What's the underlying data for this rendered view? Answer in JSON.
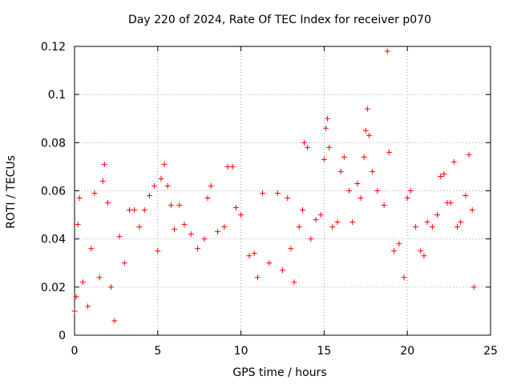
{
  "chart_data": {
    "type": "scatter",
    "title": "Day 220 of 2024, Rate Of TEC Index for receiver p070",
    "xlabel": "GPS time / hours",
    "ylabel": "ROTI / TECUs",
    "xlim": [
      0,
      25
    ],
    "ylim": [
      0,
      0.12
    ],
    "x_ticks": [
      0,
      5,
      10,
      15,
      20,
      25
    ],
    "y_ticks": [
      0,
      0.02,
      0.04,
      0.06,
      0.08,
      0.1,
      0.12
    ],
    "x_tick_labels": [
      "0",
      "5",
      "10",
      "15",
      "20",
      "25"
    ],
    "y_tick_labels": [
      "0",
      "0.02",
      "0.04",
      "0.06",
      "0.08",
      "0.1",
      "0.12"
    ],
    "grid": true,
    "marker": "plus",
    "color": "#ff0000",
    "points": [
      [
        0.0,
        0.01
      ],
      [
        0.1,
        0.016
      ],
      [
        0.2,
        0.046
      ],
      [
        0.3,
        0.057
      ],
      [
        0.5,
        0.022
      ],
      [
        0.8,
        0.012
      ],
      [
        1.0,
        0.036
      ],
      [
        1.2,
        0.059
      ],
      [
        1.5,
        0.024
      ],
      [
        1.7,
        0.064
      ],
      [
        1.8,
        0.071
      ],
      [
        2.0,
        0.055
      ],
      [
        2.2,
        0.02
      ],
      [
        2.4,
        0.006
      ],
      [
        2.7,
        0.041
      ],
      [
        3.0,
        0.03
      ],
      [
        3.3,
        0.052
      ],
      [
        3.6,
        0.052
      ],
      [
        3.9,
        0.045
      ],
      [
        4.2,
        0.052
      ],
      [
        4.5,
        0.058
      ],
      [
        4.8,
        0.062
      ],
      [
        5.0,
        0.035
      ],
      [
        5.2,
        0.065
      ],
      [
        5.4,
        0.071
      ],
      [
        5.6,
        0.062
      ],
      [
        5.8,
        0.054
      ],
      [
        6.0,
        0.044
      ],
      [
        6.3,
        0.054
      ],
      [
        6.6,
        0.046
      ],
      [
        7.0,
        0.042
      ],
      [
        7.4,
        0.036
      ],
      [
        7.8,
        0.04
      ],
      [
        8.0,
        0.057
      ],
      [
        8.2,
        0.062
      ],
      [
        8.6,
        0.043
      ],
      [
        9.0,
        0.045
      ],
      [
        9.2,
        0.07
      ],
      [
        9.5,
        0.07
      ],
      [
        9.7,
        0.053
      ],
      [
        10.0,
        0.05
      ],
      [
        10.5,
        0.033
      ],
      [
        10.8,
        0.034
      ],
      [
        11.0,
        0.024
      ],
      [
        11.3,
        0.059
      ],
      [
        11.7,
        0.03
      ],
      [
        12.2,
        0.059
      ],
      [
        12.5,
        0.027
      ],
      [
        12.8,
        0.057
      ],
      [
        13.0,
        0.036
      ],
      [
        13.2,
        0.022
      ],
      [
        13.5,
        0.045
      ],
      [
        13.7,
        0.052
      ],
      [
        13.8,
        0.08
      ],
      [
        14.0,
        0.078
      ],
      [
        14.2,
        0.04
      ],
      [
        14.5,
        0.048
      ],
      [
        14.8,
        0.05
      ],
      [
        15.0,
        0.073
      ],
      [
        15.1,
        0.086
      ],
      [
        15.2,
        0.09
      ],
      [
        15.3,
        0.078
      ],
      [
        15.5,
        0.045
      ],
      [
        15.8,
        0.047
      ],
      [
        16.0,
        0.068
      ],
      [
        16.2,
        0.074
      ],
      [
        16.5,
        0.06
      ],
      [
        16.7,
        0.047
      ],
      [
        17.0,
        0.063
      ],
      [
        17.2,
        0.057
      ],
      [
        17.4,
        0.074
      ],
      [
        17.5,
        0.085
      ],
      [
        17.6,
        0.094
      ],
      [
        17.7,
        0.083
      ],
      [
        17.9,
        0.068
      ],
      [
        18.2,
        0.06
      ],
      [
        18.6,
        0.054
      ],
      [
        18.8,
        0.118
      ],
      [
        18.9,
        0.076
      ],
      [
        19.2,
        0.035
      ],
      [
        19.5,
        0.038
      ],
      [
        19.8,
        0.024
      ],
      [
        20.0,
        0.057
      ],
      [
        20.2,
        0.06
      ],
      [
        20.5,
        0.045
      ],
      [
        20.8,
        0.035
      ],
      [
        21.0,
        0.033
      ],
      [
        21.2,
        0.047
      ],
      [
        21.5,
        0.045
      ],
      [
        21.8,
        0.05
      ],
      [
        22.0,
        0.066
      ],
      [
        22.2,
        0.067
      ],
      [
        22.4,
        0.055
      ],
      [
        22.6,
        0.055
      ],
      [
        22.8,
        0.072
      ],
      [
        23.0,
        0.045
      ],
      [
        23.2,
        0.047
      ],
      [
        23.5,
        0.058
      ],
      [
        23.7,
        0.075
      ],
      [
        23.9,
        0.052
      ],
      [
        24.0,
        0.02
      ]
    ]
  }
}
